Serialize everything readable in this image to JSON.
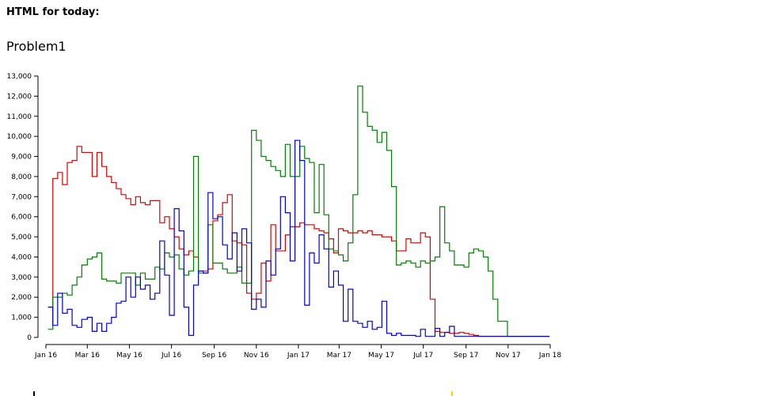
{
  "page": {
    "heading": "HTML for today:"
  },
  "chart_data": {
    "type": "line",
    "title": "Problem1",
    "xlabel": "",
    "ylabel": "",
    "x_range": [
      "2016-01-01",
      "2018-01-01"
    ],
    "ylim": [
      0,
      13000
    ],
    "y_ticks": [
      0,
      1000,
      2000,
      3000,
      4000,
      5000,
      6000,
      7000,
      8000,
      9000,
      10000,
      11000,
      12000,
      13000
    ],
    "x_ticks": [
      {
        "date": "2016-01-01",
        "label": "Jan 16"
      },
      {
        "date": "2016-03-01",
        "label": "Mar 16"
      },
      {
        "date": "2016-05-01",
        "label": "May 16"
      },
      {
        "date": "2016-07-01",
        "label": "Jul 16"
      },
      {
        "date": "2016-09-01",
        "label": "Sep 16"
      },
      {
        "date": "2016-11-01",
        "label": "Nov 16"
      },
      {
        "date": "2017-01-01",
        "label": "Jan 17"
      },
      {
        "date": "2017-03-01",
        "label": "Mar 17"
      },
      {
        "date": "2017-05-01",
        "label": "May 17"
      },
      {
        "date": "2017-07-01",
        "label": "Jul 17"
      },
      {
        "date": "2017-09-01",
        "label": "Sep 17"
      },
      {
        "date": "2017-11-01",
        "label": "Nov 17"
      },
      {
        "date": "2018-01-01",
        "label": "Jan 18"
      }
    ],
    "step": "after",
    "grid": false,
    "legend": "none",
    "series": [
      {
        "color": "#e00000",
        "x": [
          "2016-01-04",
          "2016-01-11",
          "2016-01-18",
          "2016-01-25",
          "2016-02-01",
          "2016-02-08",
          "2016-02-15",
          "2016-02-22",
          "2016-03-01",
          "2016-03-08",
          "2016-03-15",
          "2016-03-22",
          "2016-03-29",
          "2016-04-05",
          "2016-04-12",
          "2016-04-19",
          "2016-04-26",
          "2016-05-03",
          "2016-05-10",
          "2016-05-17",
          "2016-05-24",
          "2016-05-31",
          "2016-06-07",
          "2016-06-14",
          "2016-06-21",
          "2016-06-28",
          "2016-07-05",
          "2016-07-12",
          "2016-07-19",
          "2016-07-26",
          "2016-08-02",
          "2016-08-09",
          "2016-08-16",
          "2016-08-23",
          "2016-08-30",
          "2016-09-06",
          "2016-09-13",
          "2016-09-20",
          "2016-09-27",
          "2016-10-04",
          "2016-10-11",
          "2016-10-18",
          "2016-10-25",
          "2016-11-01",
          "2016-11-08",
          "2016-11-15",
          "2016-11-22",
          "2016-11-29",
          "2016-12-06",
          "2016-12-13",
          "2016-12-20",
          "2016-12-27",
          "2017-01-03",
          "2017-01-10",
          "2017-01-17",
          "2017-01-24",
          "2017-01-31",
          "2017-02-07",
          "2017-02-14",
          "2017-02-21",
          "2017-02-28",
          "2017-03-07",
          "2017-03-14",
          "2017-03-21",
          "2017-03-28",
          "2017-04-04",
          "2017-04-11",
          "2017-04-18",
          "2017-04-25",
          "2017-05-02",
          "2017-05-09",
          "2017-05-16",
          "2017-05-23",
          "2017-05-30",
          "2017-06-06",
          "2017-06-13",
          "2017-06-20",
          "2017-06-27",
          "2017-07-04",
          "2017-07-11",
          "2017-07-18",
          "2017-07-25",
          "2017-08-01",
          "2017-08-08",
          "2017-08-15",
          "2017-08-22",
          "2017-08-29",
          "2017-09-05",
          "2017-09-12",
          "2017-09-19",
          "2017-09-26",
          "2017-10-03",
          "2017-10-10",
          "2017-10-17",
          "2017-10-24",
          "2017-10-31",
          "2017-11-07",
          "2017-11-14",
          "2017-11-21",
          "2017-11-28",
          "2017-12-05",
          "2017-12-12",
          "2017-12-19",
          "2017-12-26"
        ],
        "values": [
          1500,
          7900,
          8200,
          7600,
          8700,
          8800,
          9500,
          9200,
          9200,
          8000,
          9200,
          8500,
          8000,
          7700,
          7400,
          7100,
          6900,
          6600,
          7000,
          6700,
          6600,
          6800,
          6800,
          5700,
          6000,
          5400,
          5000,
          4400,
          4100,
          4300,
          4000,
          3300,
          3300,
          3400,
          5800,
          6100,
          6700,
          7100,
          4800,
          4700,
          4600,
          2200,
          1900,
          2200,
          3700,
          2800,
          5600,
          4300,
          4300,
          5100,
          5500,
          5500,
          5700,
          5600,
          5600,
          5400,
          5300,
          5200,
          4900,
          4200,
          5400,
          5300,
          5200,
          5200,
          5300,
          5200,
          5300,
          5100,
          5100,
          5000,
          5000,
          4800,
          4300,
          4300,
          4900,
          4700,
          4700,
          5200,
          5000,
          1900,
          300,
          250,
          250,
          200,
          200,
          250,
          200,
          150,
          100,
          50,
          50,
          50,
          50,
          50,
          50,
          50,
          50,
          50,
          50,
          50,
          50,
          50,
          50,
          50
        ]
      },
      {
        "color": "#008000",
        "x": [
          "2016-01-04",
          "2016-01-11",
          "2016-01-18",
          "2016-01-25",
          "2016-02-01",
          "2016-02-08",
          "2016-02-15",
          "2016-02-22",
          "2016-03-01",
          "2016-03-08",
          "2016-03-15",
          "2016-03-22",
          "2016-03-29",
          "2016-04-05",
          "2016-04-12",
          "2016-04-19",
          "2016-04-26",
          "2016-05-03",
          "2016-05-10",
          "2016-05-17",
          "2016-05-24",
          "2016-05-31",
          "2016-06-07",
          "2016-06-14",
          "2016-06-21",
          "2016-06-28",
          "2016-07-05",
          "2016-07-12",
          "2016-07-19",
          "2016-07-26",
          "2016-08-02",
          "2016-08-09",
          "2016-08-16",
          "2016-08-23",
          "2016-08-30",
          "2016-09-06",
          "2016-09-13",
          "2016-09-20",
          "2016-09-27",
          "2016-10-04",
          "2016-10-11",
          "2016-10-18",
          "2016-10-25",
          "2016-11-01",
          "2016-11-08",
          "2016-11-15",
          "2016-11-22",
          "2016-11-29",
          "2016-12-06",
          "2016-12-13",
          "2016-12-20",
          "2016-12-27",
          "2017-01-03",
          "2017-01-10",
          "2017-01-17",
          "2017-01-24",
          "2017-01-31",
          "2017-02-07",
          "2017-02-14",
          "2017-02-21",
          "2017-02-28",
          "2017-03-07",
          "2017-03-14",
          "2017-03-21",
          "2017-03-28",
          "2017-04-04",
          "2017-04-11",
          "2017-04-18",
          "2017-04-25",
          "2017-05-02",
          "2017-05-09",
          "2017-05-16",
          "2017-05-23",
          "2017-05-30",
          "2017-06-06",
          "2017-06-13",
          "2017-06-20",
          "2017-06-27",
          "2017-07-04",
          "2017-07-11",
          "2017-07-18",
          "2017-07-25",
          "2017-08-01",
          "2017-08-08",
          "2017-08-15",
          "2017-08-22",
          "2017-08-29",
          "2017-09-05",
          "2017-09-12",
          "2017-09-19",
          "2017-09-26",
          "2017-10-03",
          "2017-10-10",
          "2017-10-17",
          "2017-10-24",
          "2017-10-31",
          "2017-11-07",
          "2017-11-14",
          "2017-11-21",
          "2017-11-28",
          "2017-12-05",
          "2017-12-12",
          "2017-12-19",
          "2017-12-26"
        ],
        "values": [
          400,
          2000,
          2000,
          2200,
          2100,
          2600,
          3000,
          3600,
          3900,
          4000,
          4200,
          2900,
          2800,
          2800,
          2700,
          3200,
          3200,
          3200,
          2600,
          3200,
          2900,
          2900,
          3500,
          3400,
          4200,
          4000,
          4100,
          3400,
          3100,
          3300,
          9000,
          3200,
          3200,
          5600,
          3700,
          3700,
          3400,
          3200,
          3200,
          3500,
          2700,
          2700,
          10300,
          9800,
          9000,
          8800,
          8500,
          8300,
          8000,
          9600,
          8000,
          8000,
          9500,
          8900,
          8700,
          6200,
          8600,
          6100,
          4400,
          4300,
          4100,
          3800,
          4700,
          7100,
          12500,
          11200,
          10500,
          10300,
          9700,
          10200,
          9300,
          7500,
          3600,
          3700,
          3800,
          3700,
          3500,
          3800,
          3700,
          3800,
          4000,
          6500,
          4700,
          4300,
          3600,
          3600,
          3500,
          4200,
          4400,
          4300,
          4000,
          3300,
          1900,
          800,
          800,
          50,
          50,
          50,
          50,
          50,
          50,
          50,
          50,
          50
        ]
      },
      {
        "color": "#0000e0",
        "x": [
          "2016-01-04",
          "2016-01-11",
          "2016-01-18",
          "2016-01-25",
          "2016-02-01",
          "2016-02-08",
          "2016-02-15",
          "2016-02-22",
          "2016-03-01",
          "2016-03-08",
          "2016-03-15",
          "2016-03-22",
          "2016-03-29",
          "2016-04-05",
          "2016-04-12",
          "2016-04-19",
          "2016-04-26",
          "2016-05-03",
          "2016-05-10",
          "2016-05-17",
          "2016-05-24",
          "2016-05-31",
          "2016-06-07",
          "2016-06-14",
          "2016-06-21",
          "2016-06-28",
          "2016-07-05",
          "2016-07-12",
          "2016-07-19",
          "2016-07-26",
          "2016-08-02",
          "2016-08-09",
          "2016-08-16",
          "2016-08-23",
          "2016-08-30",
          "2016-09-06",
          "2016-09-13",
          "2016-09-20",
          "2016-09-27",
          "2016-10-04",
          "2016-10-11",
          "2016-10-18",
          "2016-10-25",
          "2016-11-01",
          "2016-11-08",
          "2016-11-15",
          "2016-11-22",
          "2016-11-29",
          "2016-12-06",
          "2016-12-13",
          "2016-12-20",
          "2016-12-27",
          "2017-01-03",
          "2017-01-10",
          "2017-01-17",
          "2017-01-24",
          "2017-01-31",
          "2017-02-07",
          "2017-02-14",
          "2017-02-21",
          "2017-02-28",
          "2017-03-07",
          "2017-03-14",
          "2017-03-21",
          "2017-03-28",
          "2017-04-04",
          "2017-04-11",
          "2017-04-18",
          "2017-04-25",
          "2017-05-02",
          "2017-05-09",
          "2017-05-16",
          "2017-05-23",
          "2017-05-30",
          "2017-06-06",
          "2017-06-13",
          "2017-06-20",
          "2017-06-27",
          "2017-07-04",
          "2017-07-11",
          "2017-07-18",
          "2017-07-25",
          "2017-08-01",
          "2017-08-08",
          "2017-08-15",
          "2017-08-22",
          "2017-08-29",
          "2017-09-05",
          "2017-09-12",
          "2017-09-19",
          "2017-09-26",
          "2017-10-03",
          "2017-10-10",
          "2017-10-17",
          "2017-10-24",
          "2017-10-31",
          "2017-11-07",
          "2017-11-14",
          "2017-11-21",
          "2017-11-28",
          "2017-12-05",
          "2017-12-12",
          "2017-12-19",
          "2017-12-26"
        ],
        "values": [
          1500,
          600,
          2200,
          1200,
          1400,
          600,
          500,
          900,
          1000,
          300,
          700,
          300,
          700,
          1000,
          1700,
          1800,
          3000,
          2000,
          3000,
          2400,
          2600,
          1900,
          2200,
          4800,
          3100,
          1100,
          6400,
          5300,
          1500,
          100,
          2600,
          3300,
          3200,
          7200,
          5900,
          6000,
          4600,
          3900,
          5200,
          3300,
          5400,
          4700,
          1400,
          1900,
          1500,
          3800,
          3100,
          4400,
          7000,
          6200,
          3800,
          9800,
          8800,
          1600,
          4200,
          3700,
          5100,
          4400,
          2500,
          3300,
          2600,
          800,
          2400,
          800,
          700,
          500,
          800,
          400,
          500,
          1800,
          200,
          100,
          200,
          100,
          100,
          100,
          50,
          400,
          50,
          50,
          450,
          50,
          250,
          550,
          50,
          50,
          50,
          50,
          50,
          50,
          50,
          50,
          50,
          50,
          50,
          50,
          50,
          50,
          50,
          50,
          50,
          50,
          50,
          50
        ]
      }
    ]
  }
}
